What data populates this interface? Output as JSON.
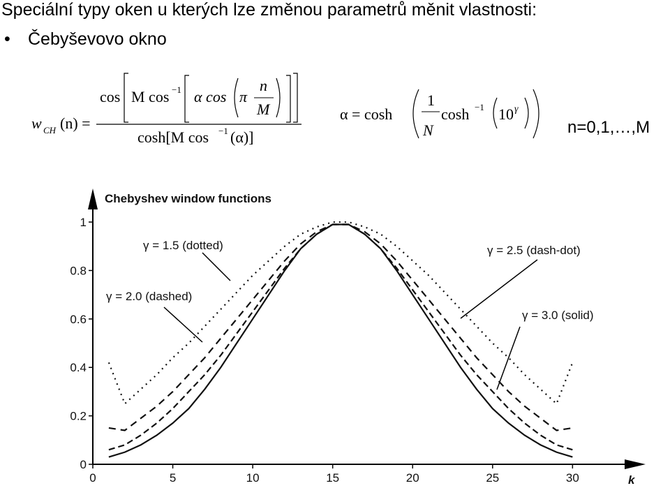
{
  "slide": {
    "title": "Speciální typy oken u kterých lze změnou parametrů měnit vlastnosti:",
    "bullet": "Čebyševovo okno",
    "formula1": {
      "w": "w",
      "sub": "CH",
      "lhs": "(n) =",
      "cos": "cos",
      "mcos": "M cos",
      "inv1": "−1",
      "acos": "α cos",
      "pi": "π",
      "n": "n",
      "M": "M",
      "den": "cosh[M cos",
      "inv2": "−1",
      "den_end": "(α)]"
    },
    "formula2": {
      "lhs": "α = cosh",
      "num": "1",
      "den": "N",
      "cosh": "cosh",
      "inv": "−1",
      "ten": "10",
      "gamma": "γ"
    },
    "range": "n=0,1,…,M"
  },
  "chart_data": {
    "type": "line",
    "title": "Chebyshev window functions",
    "x_label": "k",
    "x": [
      1,
      2,
      3,
      4,
      5,
      6,
      7,
      8,
      9,
      10,
      11,
      12,
      13,
      14,
      15,
      16,
      17,
      18,
      19,
      20,
      21,
      22,
      23,
      24,
      25,
      26,
      27,
      28,
      29,
      30
    ],
    "series": [
      {
        "name": "γ = 1.5 (dotted)",
        "color": "#111111",
        "style": "dotted",
        "values": [
          0.42,
          0.25,
          0.31,
          0.37,
          0.44,
          0.5,
          0.57,
          0.64,
          0.71,
          0.78,
          0.84,
          0.9,
          0.95,
          0.98,
          1.0,
          1.0,
          0.98,
          0.95,
          0.9,
          0.84,
          0.78,
          0.71,
          0.64,
          0.57,
          0.5,
          0.44,
          0.37,
          0.31,
          0.25,
          0.42
        ]
      },
      {
        "name": "γ = 2.0 (dashed)",
        "color": "#111111",
        "style": "dashed",
        "values": [
          0.15,
          0.14,
          0.19,
          0.24,
          0.3,
          0.37,
          0.44,
          0.52,
          0.6,
          0.68,
          0.76,
          0.84,
          0.91,
          0.96,
          0.99,
          0.99,
          0.96,
          0.91,
          0.84,
          0.76,
          0.68,
          0.6,
          0.52,
          0.44,
          0.37,
          0.3,
          0.24,
          0.19,
          0.14,
          0.15
        ]
      },
      {
        "name": "γ = 2.5 (dash-dot)",
        "color": "#111111",
        "style": "dash-dot",
        "values": [
          0.06,
          0.08,
          0.12,
          0.17,
          0.23,
          0.3,
          0.37,
          0.45,
          0.54,
          0.63,
          0.72,
          0.81,
          0.89,
          0.95,
          0.99,
          0.99,
          0.95,
          0.89,
          0.81,
          0.72,
          0.63,
          0.54,
          0.45,
          0.37,
          0.3,
          0.23,
          0.17,
          0.12,
          0.08,
          0.06
        ]
      },
      {
        "name": "γ = 3.0 (solid)",
        "color": "#111111",
        "style": "solid",
        "values": [
          0.03,
          0.05,
          0.08,
          0.12,
          0.17,
          0.23,
          0.31,
          0.4,
          0.5,
          0.6,
          0.7,
          0.8,
          0.89,
          0.95,
          0.99,
          0.99,
          0.95,
          0.89,
          0.8,
          0.7,
          0.6,
          0.5,
          0.4,
          0.31,
          0.23,
          0.17,
          0.12,
          0.08,
          0.05,
          0.03
        ]
      }
    ],
    "xlim": [
      0,
      34
    ],
    "xticks": [
      0,
      5,
      10,
      15,
      20,
      25,
      30
    ],
    "ylim": [
      0,
      1.15
    ],
    "yticks": [
      0,
      0.2,
      0.4,
      0.6,
      0.8,
      1
    ]
  }
}
